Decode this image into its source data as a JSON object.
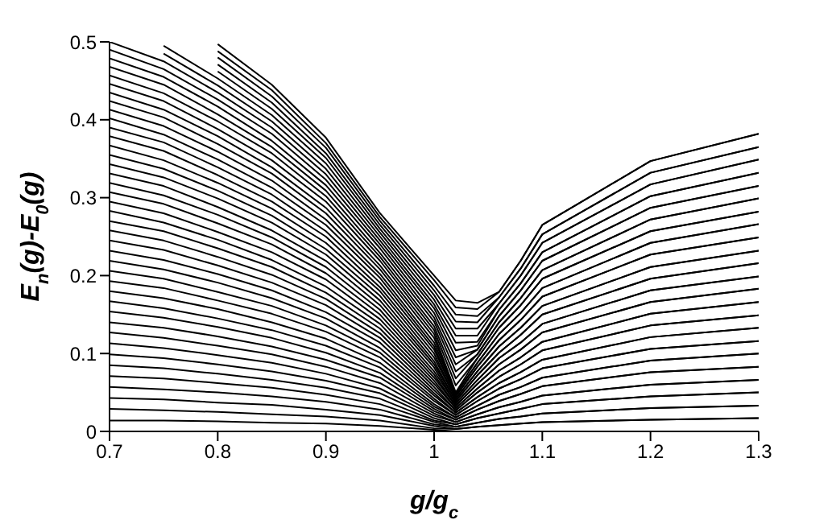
{
  "chart_data": {
    "type": "line",
    "xlabel": "g/g$_{c}$",
    "ylabel": "E$_{n}$(g)-E$_{0}$(g)",
    "xlim": [
      0.7,
      1.3
    ],
    "ylim": [
      0,
      0.5
    ],
    "xticks": [
      0.7,
      0.8,
      0.9,
      1,
      1.1,
      1.2,
      1.3
    ],
    "yticks": [
      0,
      0.1,
      0.2,
      0.3,
      0.4,
      0.5
    ],
    "marker": "none",
    "line_style": "solid",
    "x": [
      0.7,
      0.75,
      0.8,
      0.85,
      0.9,
      0.95,
      1.0,
      1.02,
      1.04,
      1.06,
      1.08,
      1.1,
      1.2,
      1.3
    ],
    "series": [
      {
        "color": "#000000",
        "values": [
          0.014,
          0.014,
          0.013,
          0.011,
          0.01,
          0.007,
          0.002,
          0,
          0,
          0,
          0,
          0,
          0,
          0
        ]
      },
      {
        "color": "#000000",
        "values": [
          0.029,
          0.027,
          0.025,
          0.022,
          0.019,
          0.014,
          0.004,
          0.003,
          0.006,
          0.008,
          0.01,
          0.012,
          0.015,
          0.017
        ]
      },
      {
        "color": "#000000",
        "values": [
          0.043,
          0.041,
          0.037,
          0.034,
          0.028,
          0.021,
          0.007,
          0.003,
          0.006,
          0.008,
          0.01,
          0.012,
          0.015,
          0.017
        ]
      },
      {
        "color": "#000000",
        "values": [
          0.057,
          0.054,
          0.05,
          0.045,
          0.038,
          0.028,
          0.009,
          0.006,
          0.011,
          0.016,
          0.019,
          0.023,
          0.03,
          0.033
        ]
      },
      {
        "color": "#000000",
        "values": [
          0.071,
          0.068,
          0.062,
          0.056,
          0.047,
          0.035,
          0.012,
          0.006,
          0.011,
          0.016,
          0.019,
          0.023,
          0.03,
          0.033
        ]
      },
      {
        "color": "#000000",
        "values": [
          0.085,
          0.081,
          0.074,
          0.066,
          0.056,
          0.042,
          0.014,
          0.009,
          0.017,
          0.023,
          0.029,
          0.035,
          0.045,
          0.05
        ]
      },
      {
        "color": "#000000",
        "values": [
          0.099,
          0.094,
          0.086,
          0.077,
          0.065,
          0.049,
          0.017,
          0.009,
          0.017,
          0.023,
          0.029,
          0.035,
          0.045,
          0.05
        ]
      },
      {
        "color": "#000000",
        "values": [
          0.113,
          0.107,
          0.098,
          0.088,
          0.074,
          0.055,
          0.02,
          0.012,
          0.022,
          0.031,
          0.038,
          0.046,
          0.06,
          0.066
        ]
      },
      {
        "color": "#000000",
        "values": [
          0.127,
          0.12,
          0.11,
          0.099,
          0.083,
          0.062,
          0.023,
          0.012,
          0.022,
          0.031,
          0.038,
          0.046,
          0.06,
          0.066
        ]
      },
      {
        "color": "#000000",
        "values": [
          0.14,
          0.133,
          0.122,
          0.109,
          0.092,
          0.069,
          0.026,
          0.015,
          0.028,
          0.039,
          0.048,
          0.058,
          0.076,
          0.083
        ]
      },
      {
        "color": "#000000",
        "values": [
          0.154,
          0.146,
          0.134,
          0.12,
          0.101,
          0.075,
          0.029,
          0.015,
          0.028,
          0.039,
          0.048,
          0.058,
          0.076,
          0.083
        ]
      },
      {
        "color": "#000000",
        "values": [
          0.167,
          0.158,
          0.145,
          0.13,
          0.11,
          0.082,
          0.032,
          0.018,
          0.033,
          0.047,
          0.057,
          0.069,
          0.091,
          0.1
        ]
      },
      {
        "color": "#000000",
        "values": [
          0.18,
          0.171,
          0.157,
          0.14,
          0.119,
          0.088,
          0.035,
          0.018,
          0.033,
          0.047,
          0.057,
          0.069,
          0.091,
          0.1
        ]
      },
      {
        "color": "#000000",
        "values": [
          0.193,
          0.184,
          0.168,
          0.151,
          0.128,
          0.095,
          0.039,
          0.021,
          0.039,
          0.055,
          0.067,
          0.081,
          0.106,
          0.116
        ]
      },
      {
        "color": "#000000",
        "values": [
          0.206,
          0.196,
          0.179,
          0.161,
          0.136,
          0.101,
          0.042,
          0.021,
          0.039,
          0.055,
          0.067,
          0.081,
          0.106,
          0.116
        ]
      },
      {
        "color": "#000000",
        "values": [
          0.219,
          0.208,
          0.191,
          0.171,
          0.145,
          0.107,
          0.046,
          0.024,
          0.044,
          0.062,
          0.076,
          0.092,
          0.121,
          0.133
        ]
      },
      {
        "color": "#000000",
        "values": [
          0.232,
          0.22,
          0.202,
          0.181,
          0.153,
          0.114,
          0.049,
          0.024,
          0.044,
          0.062,
          0.076,
          0.092,
          0.121,
          0.133
        ]
      },
      {
        "color": "#000000",
        "values": [
          0.245,
          0.233,
          0.213,
          0.191,
          0.162,
          0.12,
          0.053,
          0.027,
          0.05,
          0.07,
          0.086,
          0.104,
          0.136,
          0.149
        ]
      },
      {
        "color": "#000000",
        "values": [
          0.258,
          0.245,
          0.224,
          0.201,
          0.17,
          0.126,
          0.057,
          0.027,
          0.05,
          0.07,
          0.086,
          0.104,
          0.136,
          0.149
        ]
      },
      {
        "color": "#000000",
        "values": [
          0.27,
          0.257,
          0.235,
          0.211,
          0.178,
          0.132,
          0.061,
          0.03,
          0.055,
          0.078,
          0.095,
          0.115,
          0.151,
          0.166
        ]
      },
      {
        "color": "#000000",
        "values": [
          0.283,
          0.268,
          0.246,
          0.22,
          0.186,
          0.138,
          0.065,
          0.03,
          0.055,
          0.078,
          0.095,
          0.115,
          0.151,
          0.166
        ]
      },
      {
        "color": "#000000",
        "values": [
          0.295,
          0.28,
          0.256,
          0.23,
          0.195,
          0.144,
          0.069,
          0.033,
          0.061,
          0.086,
          0.105,
          0.127,
          0.166,
          0.183
        ]
      },
      {
        "color": "#000000",
        "values": [
          0.307,
          0.292,
          0.267,
          0.24,
          0.203,
          0.15,
          0.073,
          0.033,
          0.061,
          0.086,
          0.105,
          0.127,
          0.166,
          0.183
        ]
      },
      {
        "color": "#000000",
        "values": [
          0.319,
          0.303,
          0.278,
          0.249,
          0.211,
          0.156,
          0.077,
          0.036,
          0.066,
          0.094,
          0.114,
          0.138,
          0.181,
          0.199
        ]
      },
      {
        "color": "#000000",
        "values": [
          0.331,
          0.315,
          0.288,
          0.258,
          0.219,
          0.162,
          0.082,
          0.036,
          0.066,
          0.094,
          0.114,
          0.138,
          0.181,
          0.199
        ]
      },
      {
        "color": "#000000",
        "values": [
          0.343,
          0.326,
          0.299,
          0.268,
          0.227,
          0.168,
          0.086,
          0.039,
          0.072,
          0.101,
          0.124,
          0.15,
          0.196,
          0.216
        ]
      },
      {
        "color": "#000000",
        "values": [
          0.355,
          0.337,
          0.309,
          0.277,
          0.234,
          0.174,
          0.09,
          0.039,
          0.072,
          0.101,
          0.124,
          0.15,
          0.196,
          0.216
        ]
      },
      {
        "color": "#000000",
        "values": [
          0.367,
          0.348,
          0.319,
          0.286,
          0.242,
          0.18,
          0.095,
          0.042,
          0.077,
          0.109,
          0.133,
          0.161,
          0.211,
          0.232
        ]
      },
      {
        "color": "#000000",
        "values": [
          0.379,
          0.36,
          0.329,
          0.295,
          0.25,
          0.185,
          0.1,
          0.042,
          0.077,
          0.109,
          0.133,
          0.161,
          0.211,
          0.232
        ]
      },
      {
        "color": "#000000",
        "values": [
          0.39,
          0.371,
          0.339,
          0.304,
          0.257,
          0.191,
          0.105,
          0.045,
          0.083,
          0.117,
          0.143,
          0.173,
          0.227,
          0.249
        ]
      },
      {
        "color": "#000000",
        "values": [
          0.402,
          0.381,
          0.349,
          0.313,
          0.265,
          0.197,
          0.109,
          0.045,
          0.083,
          0.117,
          0.143,
          0.173,
          0.227,
          0.249
        ]
      },
      {
        "color": "#000000",
        "values": [
          0.413,
          0.392,
          0.359,
          0.322,
          0.272,
          0.202,
          0.114,
          0.048,
          0.088,
          0.125,
          0.152,
          0.184,
          0.242,
          0.266
        ]
      },
      {
        "color": "#000000",
        "values": [
          0.424,
          0.403,
          0.369,
          0.331,
          0.28,
          0.208,
          0.12,
          0.048,
          0.088,
          0.125,
          0.152,
          0.184,
          0.242,
          0.266
        ]
      },
      {
        "color": "#000000",
        "values": [
          0.435,
          0.413,
          0.379,
          0.339,
          0.287,
          0.213,
          0.125,
          0.05,
          0.094,
          0.133,
          0.162,
          0.196,
          0.257,
          0.282
        ]
      },
      {
        "color": "#000000",
        "values": [
          0.446,
          0.424,
          0.388,
          0.348,
          0.295,
          0.219,
          0.13,
          0.059,
          0.094,
          0.133,
          0.162,
          0.196,
          0.257,
          0.282
        ]
      },
      {
        "color": "#000000",
        "values": [
          0.457,
          0.434,
          0.398,
          0.357,
          0.302,
          0.224,
          0.135,
          0.068,
          0.099,
          0.14,
          0.171,
          0.207,
          0.272,
          0.299
        ]
      },
      {
        "color": "#000000",
        "values": [
          0.468,
          0.445,
          0.407,
          0.365,
          0.309,
          0.229,
          0.141,
          0.077,
          0.099,
          0.14,
          0.171,
          0.207,
          0.272,
          0.299
        ]
      },
      {
        "color": "#000000",
        "values": [
          0.479,
          0.455,
          0.417,
          0.373,
          0.316,
          0.235,
          0.146,
          0.086,
          0.105,
          0.148,
          0.181,
          0.219,
          0.287,
          0.315
        ]
      },
      {
        "color": "#000000",
        "values": [
          0.49,
          0.465,
          0.426,
          0.382,
          0.323,
          0.24,
          0.152,
          0.095,
          0.105,
          0.148,
          0.181,
          0.219,
          0.287,
          0.315
        ]
      },
      {
        "color": "#000000",
        "values": [
          0.5,
          0.475,
          0.435,
          0.39,
          0.33,
          0.245,
          0.158,
          0.104,
          0.11,
          0.156,
          0.19,
          0.23,
          0.302,
          0.332
        ]
      },
      {
        "color": "#000000",
        "values": [
          null,
          0.485,
          0.444,
          0.398,
          0.337,
          0.25,
          0.163,
          0.114,
          0.115,
          0.156,
          0.19,
          0.23,
          0.302,
          0.332
        ]
      },
      {
        "color": "#000000",
        "values": [
          null,
          0.495,
          0.453,
          0.406,
          0.344,
          0.255,
          0.169,
          0.123,
          0.123,
          0.164,
          0.2,
          0.242,
          0.317,
          0.349
        ]
      },
      {
        "color": "#000000",
        "values": [
          null,
          null,
          0.462,
          0.414,
          0.351,
          0.26,
          0.175,
          0.132,
          0.132,
          0.164,
          0.2,
          0.242,
          0.317,
          0.349
        ]
      },
      {
        "color": "#000000",
        "values": [
          null,
          null,
          0.471,
          0.422,
          0.357,
          0.265,
          0.181,
          0.141,
          0.14,
          0.172,
          0.209,
          0.253,
          0.332,
          0.365
        ]
      },
      {
        "color": "#000000",
        "values": [
          null,
          null,
          0.48,
          0.43,
          0.364,
          0.27,
          0.187,
          0.15,
          0.148,
          0.172,
          0.209,
          0.253,
          0.332,
          0.365
        ]
      },
      {
        "color": "#000000",
        "values": [
          null,
          null,
          0.488,
          0.438,
          0.37,
          0.275,
          0.194,
          0.159,
          0.157,
          0.179,
          0.219,
          0.265,
          0.347,
          0.382
        ]
      },
      {
        "color": "#000000",
        "values": [
          null,
          null,
          0.497,
          0.445,
          0.377,
          0.28,
          0.2,
          0.168,
          0.165,
          0.179,
          0.219,
          0.265,
          0.347,
          0.382
        ]
      }
    ]
  }
}
